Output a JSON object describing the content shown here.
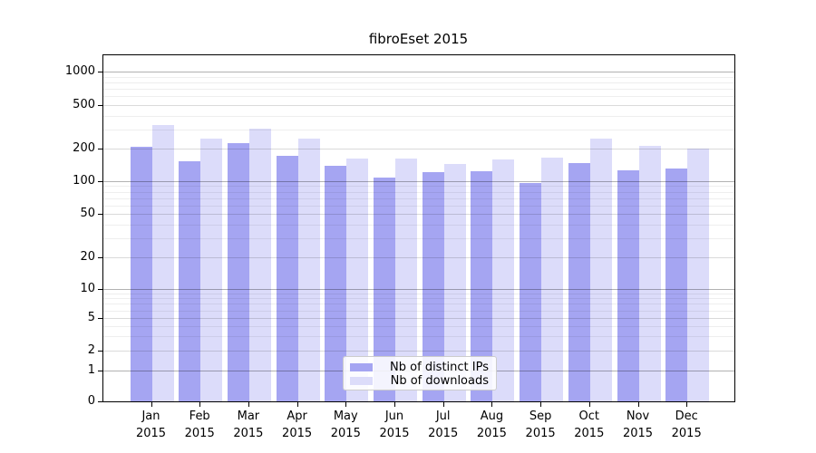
{
  "title": "fibroEset 2015",
  "chart_data": {
    "type": "bar",
    "title": "fibroEset 2015",
    "categories": [
      "Jan",
      "Feb",
      "Mar",
      "Apr",
      "May",
      "Jun",
      "Jul",
      "Aug",
      "Sep",
      "Oct",
      "Nov",
      "Dec"
    ],
    "category_year": "2015",
    "series": [
      {
        "name": "Nb of distinct IPs",
        "color": "#a5a5f2",
        "values": [
          206,
          152,
          225,
          170,
          140,
          109,
          121,
          123,
          97,
          146,
          127,
          132
        ]
      },
      {
        "name": "Nb of downloads",
        "color": "#dcdcfa",
        "values": [
          330,
          248,
          305,
          246,
          163,
          162,
          143,
          158,
          166,
          245,
          213,
          200
        ]
      }
    ],
    "xlabel": "",
    "ylabel": "",
    "y_axis": {
      "scale": "symlog",
      "tick_values": [
        1000,
        500,
        200,
        100,
        50,
        20,
        10,
        5,
        2,
        1,
        0
      ],
      "tick_labels": [
        "1000",
        "500",
        "200",
        "100",
        "50",
        "20",
        "10",
        "5",
        "2",
        "1",
        "0"
      ],
      "ylim": [
        0,
        1400
      ]
    },
    "grid": "on",
    "legend_position": "lower center inside"
  }
}
